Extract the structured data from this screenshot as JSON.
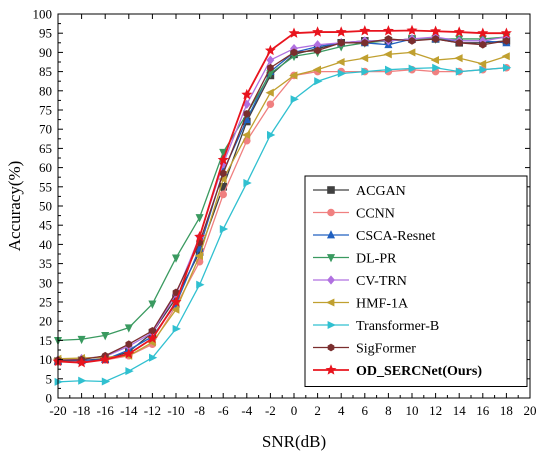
{
  "chart_data": {
    "type": "line",
    "xlabel": "SNR(dB)",
    "ylabel": "Accuracy(%)",
    "xlim": [
      -20,
      20
    ],
    "ylim": [
      0,
      100
    ],
    "x_ticks": [
      -20,
      -18,
      -16,
      -14,
      -12,
      -10,
      -8,
      -6,
      -4,
      -2,
      0,
      2,
      4,
      6,
      8,
      10,
      12,
      14,
      16,
      18,
      20
    ],
    "y_ticks": [
      0,
      5,
      10,
      15,
      20,
      25,
      30,
      35,
      40,
      45,
      50,
      55,
      60,
      65,
      70,
      75,
      80,
      85,
      90,
      95,
      100
    ],
    "x": [
      -20,
      -18,
      -16,
      -14,
      -12,
      -10,
      -8,
      -6,
      -4,
      -2,
      0,
      2,
      4,
      6,
      8,
      10,
      12,
      14,
      16,
      18
    ],
    "grid": false,
    "legend_position": "bottom-right",
    "series": [
      {
        "name": "ACGAN",
        "color": "#404040",
        "marker": "square",
        "values": [
          9.6,
          9.8,
          10.2,
          12.0,
          17.0,
          26.0,
          38.0,
          55.0,
          72.0,
          84.0,
          89.5,
          91.0,
          92.5,
          93.0,
          93.0,
          93.5,
          93.5,
          92.5,
          92.5,
          93.0
        ]
      },
      {
        "name": "CCNN",
        "color": "#f08080",
        "marker": "circle",
        "values": [
          9.4,
          9.6,
          9.9,
          11.0,
          14.0,
          24.0,
          35.5,
          53.0,
          67.0,
          76.5,
          84.0,
          85.0,
          85.0,
          85.0,
          85.0,
          85.5,
          85.0,
          85.0,
          85.5,
          86.0
        ]
      },
      {
        "name": "CSCA-Resnet",
        "color": "#2060c0",
        "marker": "triangle-up",
        "values": [
          9.6,
          9.8,
          10.0,
          12.5,
          16.0,
          24.5,
          39.0,
          59.0,
          72.5,
          85.0,
          90.0,
          91.5,
          92.5,
          92.5,
          92.0,
          93.5,
          93.5,
          93.0,
          93.0,
          92.5
        ]
      },
      {
        "name": "DL-PR",
        "color": "#3a9a60",
        "marker": "triangle-down",
        "values": [
          15.0,
          15.3,
          16.3,
          18.3,
          24.5,
          36.5,
          47.0,
          64.0,
          74.0,
          84.5,
          89.0,
          90.0,
          91.5,
          92.5,
          93.0,
          93.5,
          93.5,
          93.5,
          93.5,
          94.0
        ]
      },
      {
        "name": "CV-TRN",
        "color": "#b070e0",
        "marker": "diamond",
        "values": [
          10.0,
          10.3,
          10.8,
          13.5,
          17.0,
          27.0,
          42.0,
          61.0,
          76.5,
          88.0,
          91.0,
          92.0,
          92.5,
          93.0,
          93.0,
          93.5,
          94.0,
          93.0,
          93.0,
          94.0
        ]
      },
      {
        "name": "HMF-1A",
        "color": "#c0a030",
        "marker": "triangle-left",
        "values": [
          10.2,
          10.4,
          10.6,
          11.0,
          14.5,
          23.0,
          37.0,
          57.0,
          68.5,
          79.5,
          84.0,
          85.5,
          87.5,
          88.5,
          89.5,
          90.0,
          88.0,
          88.5,
          87.0,
          89.0
        ]
      },
      {
        "name": "Transformer-B",
        "color": "#30c0d0",
        "marker": "triangle-right",
        "values": [
          4.2,
          4.5,
          4.3,
          7.0,
          10.5,
          18.0,
          29.5,
          44.0,
          56.0,
          68.5,
          77.8,
          82.5,
          84.5,
          85.0,
          85.5,
          85.8,
          86.0,
          85.0,
          85.5,
          86.0
        ]
      },
      {
        "name": "SigFormer",
        "color": "#7a2e2e",
        "marker": "hexagon",
        "values": [
          9.8,
          10.0,
          11.0,
          14.0,
          17.5,
          27.5,
          40.5,
          58.5,
          74.0,
          86.0,
          90.0,
          90.5,
          92.5,
          92.5,
          93.5,
          93.0,
          93.5,
          92.5,
          92.0,
          93.0
        ]
      },
      {
        "name": "OD_SERCNet(Ours)",
        "color": "#e8141e",
        "marker": "star",
        "bold": true,
        "values": [
          9.5,
          9.2,
          10.0,
          11.5,
          15.5,
          25.0,
          42.0,
          62.0,
          79.0,
          90.5,
          95.0,
          95.3,
          95.3,
          95.6,
          95.6,
          95.7,
          95.5,
          95.3,
          95.0,
          95.0
        ]
      }
    ]
  }
}
